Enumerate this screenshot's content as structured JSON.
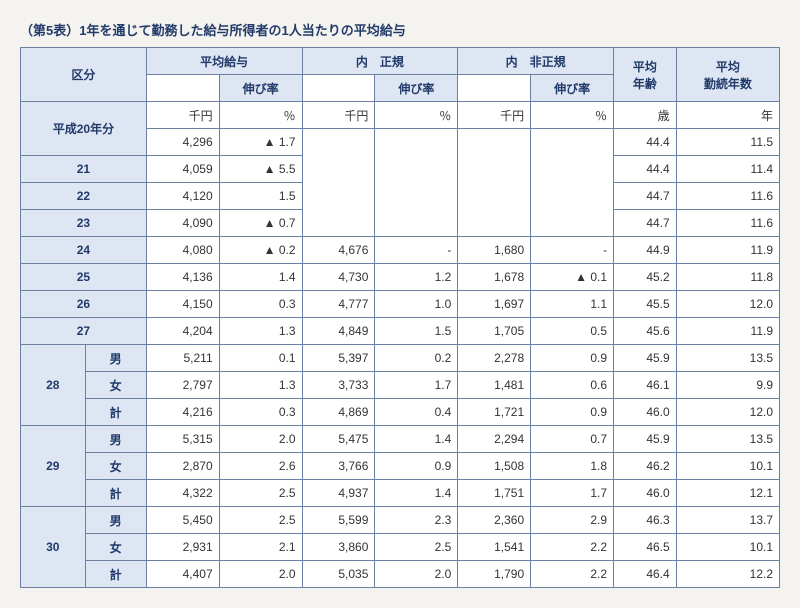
{
  "title": "（第5表）1年を通じて勤務した給与所得者の1人当たりの平均給与",
  "headers": {
    "kubun": "区分",
    "heikin_kyuyo": "平均給与",
    "nobiritsu": "伸び率",
    "uchi_seiki": "内　正規",
    "uchi_hiseiki": "内　非正規",
    "heikin_nenrei": "平均\n年齢",
    "heikin_kinzoku": "平均\n勤続年数"
  },
  "units": {
    "senen": "千円",
    "percent": "％",
    "sai": "歳",
    "nen": "年"
  },
  "row_labels": {
    "h20": "平成20年分",
    "y21": "21",
    "y22": "22",
    "y23": "23",
    "y24": "24",
    "y25": "25",
    "y26": "26",
    "y27": "27",
    "y28": "28",
    "y29": "29",
    "y30": "30",
    "male": "男",
    "female": "女",
    "total": "計"
  },
  "rows": {
    "h20": {
      "avg": "4,296",
      "rate": "▲ 1.7",
      "seiki": "",
      "seiki_rate": "",
      "hiseiki": "",
      "hiseiki_rate": "",
      "age": "44.4",
      "years": "11.5"
    },
    "y21": {
      "avg": "4,059",
      "rate": "▲ 5.5",
      "seiki": "",
      "seiki_rate": "",
      "hiseiki": "",
      "hiseiki_rate": "",
      "age": "44.4",
      "years": "11.4"
    },
    "y22": {
      "avg": "4,120",
      "rate": "1.5",
      "seiki": "",
      "seiki_rate": "",
      "hiseiki": "",
      "hiseiki_rate": "",
      "age": "44.7",
      "years": "11.6"
    },
    "y23": {
      "avg": "4,090",
      "rate": "▲ 0.7",
      "seiki": "",
      "seiki_rate": "",
      "hiseiki": "",
      "hiseiki_rate": "",
      "age": "44.7",
      "years": "11.6"
    },
    "y24": {
      "avg": "4,080",
      "rate": "▲ 0.2",
      "seiki": "4,676",
      "seiki_rate": "-",
      "hiseiki": "1,680",
      "hiseiki_rate": "-",
      "age": "44.9",
      "years": "11.9"
    },
    "y25": {
      "avg": "4,136",
      "rate": "1.4",
      "seiki": "4,730",
      "seiki_rate": "1.2",
      "hiseiki": "1,678",
      "hiseiki_rate": "▲ 0.1",
      "age": "45.2",
      "years": "11.8"
    },
    "y26": {
      "avg": "4,150",
      "rate": "0.3",
      "seiki": "4,777",
      "seiki_rate": "1.0",
      "hiseiki": "1,697",
      "hiseiki_rate": "1.1",
      "age": "45.5",
      "years": "12.0"
    },
    "y27": {
      "avg": "4,204",
      "rate": "1.3",
      "seiki": "4,849",
      "seiki_rate": "1.5",
      "hiseiki": "1,705",
      "hiseiki_rate": "0.5",
      "age": "45.6",
      "years": "11.9"
    },
    "y28m": {
      "avg": "5,211",
      "rate": "0.1",
      "seiki": "5,397",
      "seiki_rate": "0.2",
      "hiseiki": "2,278",
      "hiseiki_rate": "0.9",
      "age": "45.9",
      "years": "13.5"
    },
    "y28f": {
      "avg": "2,797",
      "rate": "1.3",
      "seiki": "3,733",
      "seiki_rate": "1.7",
      "hiseiki": "1,481",
      "hiseiki_rate": "0.6",
      "age": "46.1",
      "years": "9.9"
    },
    "y28t": {
      "avg": "4,216",
      "rate": "0.3",
      "seiki": "4,869",
      "seiki_rate": "0.4",
      "hiseiki": "1,721",
      "hiseiki_rate": "0.9",
      "age": "46.0",
      "years": "12.0"
    },
    "y29m": {
      "avg": "5,315",
      "rate": "2.0",
      "seiki": "5,475",
      "seiki_rate": "1.4",
      "hiseiki": "2,294",
      "hiseiki_rate": "0.7",
      "age": "45.9",
      "years": "13.5"
    },
    "y29f": {
      "avg": "2,870",
      "rate": "2.6",
      "seiki": "3,766",
      "seiki_rate": "0.9",
      "hiseiki": "1,508",
      "hiseiki_rate": "1.8",
      "age": "46.2",
      "years": "10.1"
    },
    "y29t": {
      "avg": "4,322",
      "rate": "2.5",
      "seiki": "4,937",
      "seiki_rate": "1.4",
      "hiseiki": "1,751",
      "hiseiki_rate": "1.7",
      "age": "46.0",
      "years": "12.1"
    },
    "y30m": {
      "avg": "5,450",
      "rate": "2.5",
      "seiki": "5,599",
      "seiki_rate": "2.3",
      "hiseiki": "2,360",
      "hiseiki_rate": "2.9",
      "age": "46.3",
      "years": "13.7"
    },
    "y30f": {
      "avg": "2,931",
      "rate": "2.1",
      "seiki": "3,860",
      "seiki_rate": "2.5",
      "hiseiki": "1,541",
      "hiseiki_rate": "2.2",
      "age": "46.5",
      "years": "10.1"
    },
    "y30t": {
      "avg": "4,407",
      "rate": "2.0",
      "seiki": "5,035",
      "seiki_rate": "2.0",
      "hiseiki": "1,790",
      "hiseiki_rate": "2.2",
      "age": "46.4",
      "years": "12.2"
    }
  }
}
